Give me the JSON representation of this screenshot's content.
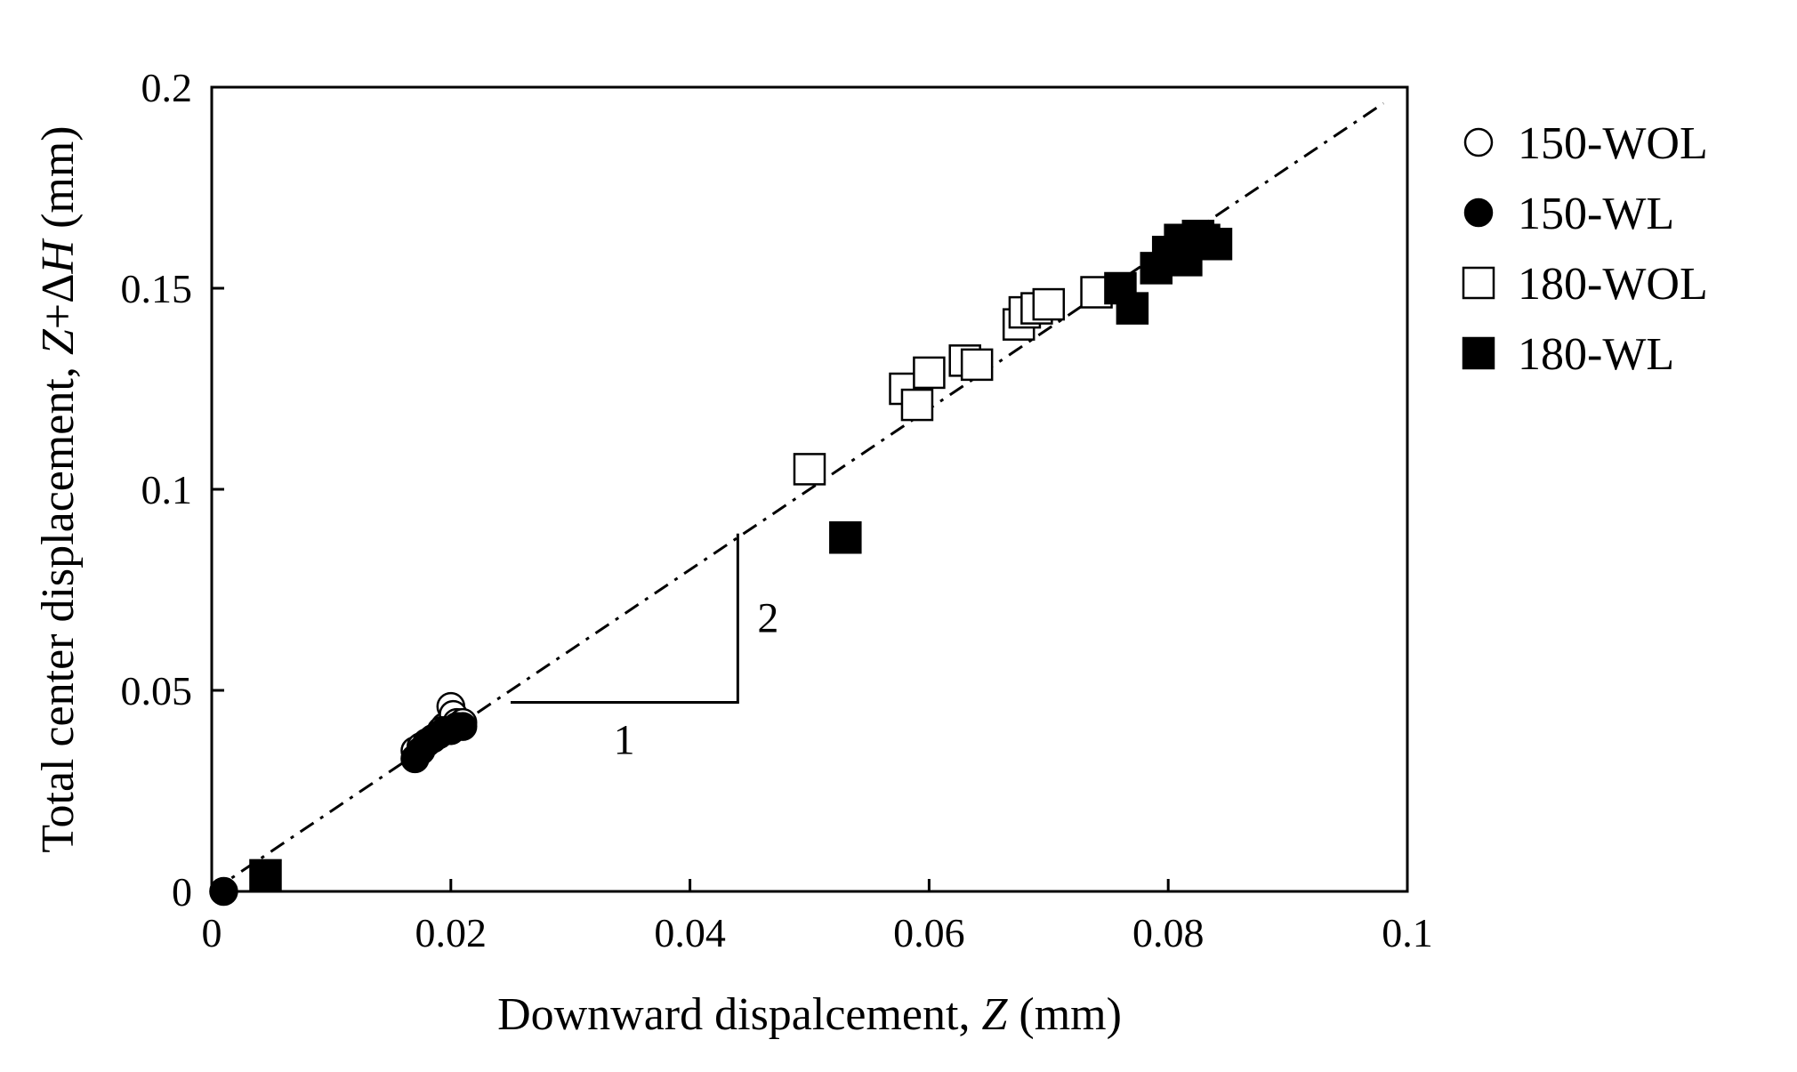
{
  "chart_data": {
    "type": "scatter",
    "xlabel": {
      "prefix": "Downward dispalcement, ",
      "var": "Z",
      "suffix": " (mm)"
    },
    "ylabel": {
      "prefix": "Total center displacement, ",
      "var1": "Z",
      "plus": "+Δ",
      "var2": "H",
      "suffix": " (mm)"
    },
    "xlim": [
      0,
      0.1
    ],
    "ylim": [
      0,
      0.2
    ],
    "xticks": [
      "0",
      "0.02",
      "0.04",
      "0.06",
      "0.08",
      "0.1"
    ],
    "xtick_values": [
      0,
      0.02,
      0.04,
      0.06,
      0.08,
      0.1
    ],
    "yticks": [
      "0",
      "0.05",
      "0.1",
      "0.15",
      "0.2"
    ],
    "ytick_values": [
      0,
      0.05,
      0.1,
      0.15,
      0.2
    ],
    "grid": false,
    "legend_position": "outside-right-top",
    "reference_line": {
      "style": "dash-dot",
      "slope": 2,
      "intercept": 0,
      "x_range": [
        0,
        0.098
      ]
    },
    "slope_triangle": {
      "run_label": "1",
      "rise_label": "2",
      "x0": 0.025,
      "y0": 0.047,
      "x1": 0.044,
      "y1": 0.089
    },
    "series": [
      {
        "name": "150-WOL",
        "marker": "circle",
        "filled": false,
        "points": [
          [
            0.017,
            0.035
          ],
          [
            0.0175,
            0.036
          ],
          [
            0.018,
            0.037
          ],
          [
            0.0185,
            0.038
          ],
          [
            0.019,
            0.039
          ],
          [
            0.0195,
            0.041
          ],
          [
            0.02,
            0.046
          ],
          [
            0.0202,
            0.044
          ],
          [
            0.0205,
            0.042
          ],
          [
            0.021,
            0.042
          ],
          [
            0.0192,
            0.04
          ]
        ]
      },
      {
        "name": "150-WL",
        "marker": "circle",
        "filled": true,
        "points": [
          [
            0.001,
            0.0
          ],
          [
            0.017,
            0.033
          ],
          [
            0.0175,
            0.035
          ],
          [
            0.018,
            0.037
          ],
          [
            0.0185,
            0.038
          ],
          [
            0.019,
            0.039
          ],
          [
            0.0195,
            0.04
          ],
          [
            0.02,
            0.04
          ],
          [
            0.0205,
            0.041
          ],
          [
            0.021,
            0.041
          ]
        ]
      },
      {
        "name": "180-WOL",
        "marker": "square",
        "filled": false,
        "points": [
          [
            0.05,
            0.105
          ],
          [
            0.058,
            0.125
          ],
          [
            0.059,
            0.121
          ],
          [
            0.06,
            0.129
          ],
          [
            0.063,
            0.132
          ],
          [
            0.064,
            0.131
          ],
          [
            0.0675,
            0.141
          ],
          [
            0.068,
            0.144
          ],
          [
            0.069,
            0.145
          ],
          [
            0.07,
            0.146
          ],
          [
            0.074,
            0.149
          ]
        ]
      },
      {
        "name": "180-WL",
        "marker": "square",
        "filled": true,
        "points": [
          [
            0.0045,
            0.004
          ],
          [
            0.053,
            0.088
          ],
          [
            0.076,
            0.15
          ],
          [
            0.077,
            0.145
          ],
          [
            0.079,
            0.155
          ],
          [
            0.08,
            0.159
          ],
          [
            0.081,
            0.162
          ],
          [
            0.0815,
            0.157
          ],
          [
            0.0825,
            0.163
          ],
          [
            0.083,
            0.162
          ],
          [
            0.084,
            0.161
          ]
        ]
      }
    ]
  }
}
